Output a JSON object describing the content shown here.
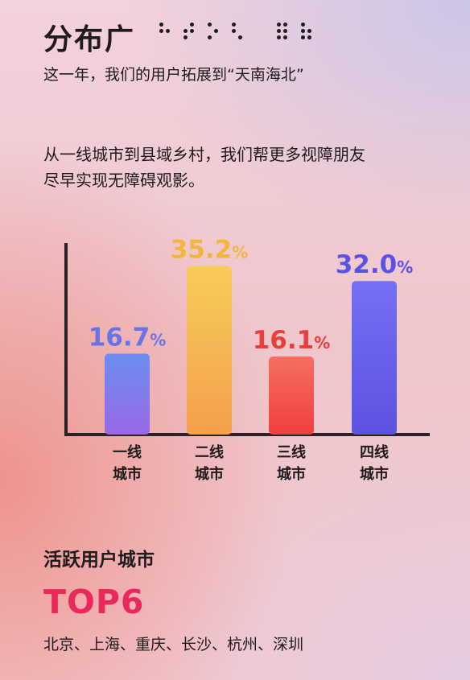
{
  "header": {
    "title": "分布广",
    "subtitle": "这一年，我们的用户拓展到“天南海北”"
  },
  "description": {
    "line1": "从一线城市到县域乡村，我们帮更多视障朋友",
    "line2": "尽早实现无障碍观影。"
  },
  "chart_data": {
    "type": "bar",
    "categories": [
      [
        "一线",
        "城市"
      ],
      [
        "二线",
        "城市"
      ],
      [
        "三线",
        "城市"
      ],
      [
        "四线",
        "城市"
      ]
    ],
    "values": [
      16.7,
      35.2,
      16.1,
      32.0
    ],
    "value_labels": [
      "16.7",
      "35.2",
      "16.1",
      "32.0"
    ],
    "unit": "%",
    "ylim": [
      0,
      40
    ],
    "grid": false,
    "legend": "none",
    "colors": [
      [
        "#6a8ef2",
        "#9a68e6"
      ],
      [
        "#f8cc5a",
        "#f4a04c"
      ],
      [
        "#f56f60",
        "#ef3f3f"
      ],
      [
        "#7470f4",
        "#5c52e2"
      ]
    ],
    "label_colors": [
      "#6a72e8",
      "#f2b63c",
      "#ea3e38",
      "#5a52e6"
    ]
  },
  "active_cities": {
    "title": "活跃用户城市",
    "badge": "TOP6",
    "list": "北京、上海、重庆、长沙、杭州、深圳"
  }
}
